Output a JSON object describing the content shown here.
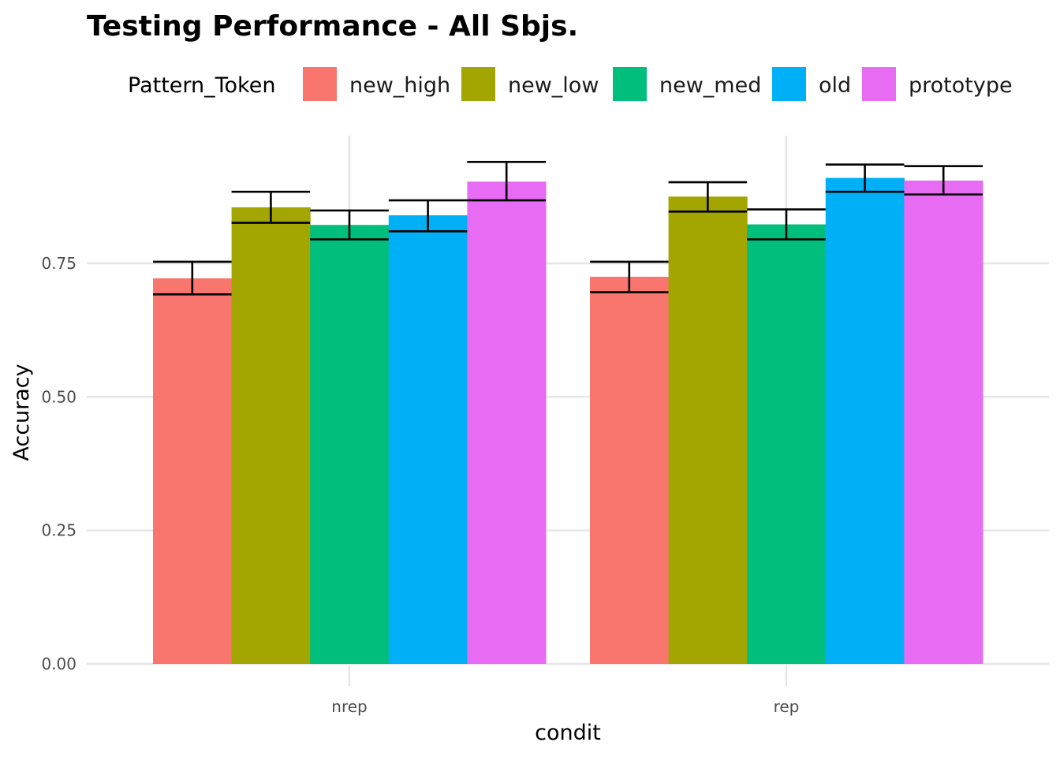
{
  "chart_data": {
    "type": "bar",
    "title": "Testing Performance - All Sbjs.",
    "xlabel": "condit",
    "ylabel": "Accuracy",
    "categories": [
      "nrep",
      "rep"
    ],
    "ylim": [
      0,
      1.0
    ],
    "yticks": [
      0.0,
      0.25,
      0.5,
      0.75
    ],
    "ytick_labels": [
      "0.00",
      "0.25",
      "0.50",
      "0.75"
    ],
    "legend": {
      "title": "Pattern_Token",
      "position": "top"
    },
    "grid": true,
    "series": [
      {
        "name": "new_high",
        "color": "#F8766D",
        "values": [
          0.722,
          0.725
        ],
        "err_low": [
          0.692,
          0.696
        ],
        "err_high": [
          0.753,
          0.753
        ]
      },
      {
        "name": "new_low",
        "color": "#A3A500",
        "values": [
          0.855,
          0.875
        ],
        "err_low": [
          0.826,
          0.847
        ],
        "err_high": [
          0.884,
          0.902
        ]
      },
      {
        "name": "new_med",
        "color": "#00BF7D",
        "values": [
          0.822,
          0.823
        ],
        "err_low": [
          0.795,
          0.795
        ],
        "err_high": [
          0.849,
          0.851
        ]
      },
      {
        "name": "old",
        "color": "#00B0F6",
        "values": [
          0.84,
          0.91
        ],
        "err_low": [
          0.81,
          0.884
        ],
        "err_high": [
          0.868,
          0.935
        ]
      },
      {
        "name": "prototype",
        "color": "#E76BF3",
        "values": [
          0.903,
          0.905
        ],
        "err_low": [
          0.868,
          0.879
        ],
        "err_high": [
          0.94,
          0.932
        ]
      }
    ]
  }
}
